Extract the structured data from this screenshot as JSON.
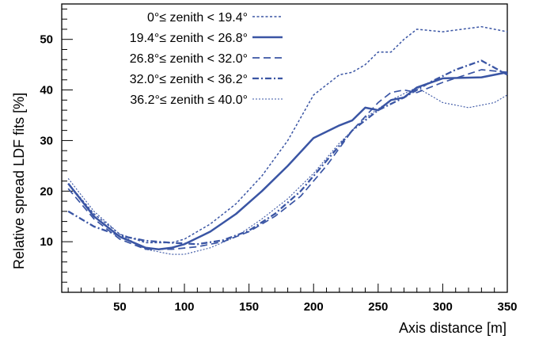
{
  "chart_data": {
    "type": "line",
    "title": "",
    "xlabel": "Axis distance [m]",
    "ylabel": "Relative spread LDF fits [%]",
    "xlim": [
      5,
      350
    ],
    "ylim": [
      0,
      57
    ],
    "x_ticks": [
      50,
      100,
      150,
      200,
      250,
      300,
      350
    ],
    "y_ticks": [
      10,
      20,
      30,
      40,
      50
    ],
    "grid": false,
    "legend_position": "top-left",
    "color": "#3a55a4",
    "series": [
      {
        "name": "0°≤ zenith < 19.4°",
        "style": "dotted",
        "x": [
          10,
          30,
          50,
          70,
          90,
          100,
          120,
          140,
          160,
          180,
          200,
          220,
          230,
          240,
          250,
          260,
          270,
          280,
          300,
          330,
          350
        ],
        "y": [
          21.5,
          15.5,
          11.5,
          9.8,
          9.8,
          10.5,
          13.5,
          17.5,
          23,
          30,
          39,
          43,
          43.5,
          45,
          47.5,
          47.5,
          50,
          52,
          51.5,
          52.5,
          51.5
        ]
      },
      {
        "name": "19.4°≤ zenith < 26.8°",
        "style": "solid",
        "x": [
          10,
          30,
          50,
          70,
          80,
          90,
          100,
          120,
          140,
          160,
          180,
          200,
          220,
          230,
          240,
          250,
          260,
          270,
          280,
          300,
          330,
          350
        ],
        "y": [
          21.5,
          15,
          11,
          8.8,
          8.5,
          8.8,
          9.5,
          12,
          15.5,
          20,
          25,
          30.5,
          33,
          34,
          36.5,
          36,
          38,
          38.5,
          40.5,
          42.3,
          42.5,
          43.5
        ]
      },
      {
        "name": "26.8°≤ zenith < 32.0°",
        "style": "dashed",
        "x": [
          10,
          30,
          50,
          70,
          90,
          110,
          130,
          150,
          170,
          190,
          210,
          230,
          250,
          260,
          270,
          280,
          300,
          330,
          350
        ],
        "y": [
          20.5,
          14.5,
          10.5,
          8.5,
          8.5,
          9,
          10,
          12,
          15,
          19,
          25,
          32,
          37.5,
          39.5,
          40,
          39.5,
          41.5,
          44,
          43.5
        ]
      },
      {
        "name": "32.0°≤ zenith < 36.2°",
        "style": "dash-dot",
        "x": [
          10,
          30,
          50,
          70,
          90,
          110,
          130,
          150,
          170,
          190,
          210,
          230,
          250,
          270,
          290,
          310,
          330,
          350
        ],
        "y": [
          16,
          13,
          11.2,
          10.2,
          9.8,
          9.5,
          10.3,
          12.2,
          15.5,
          20,
          26,
          32,
          36,
          38.5,
          41.5,
          44,
          45.8,
          43
        ]
      },
      {
        "name": "36.2°≤ zenith ≤ 40.0°",
        "style": "fine-dotted",
        "x": [
          10,
          30,
          50,
          70,
          90,
          100,
          120,
          140,
          160,
          180,
          200,
          220,
          240,
          260,
          280,
          300,
          320,
          340,
          350
        ],
        "y": [
          22.5,
          16,
          11.5,
          8.5,
          7.5,
          7.5,
          8.8,
          11,
          14.5,
          18.5,
          23.5,
          29.5,
          34.5,
          38,
          40.5,
          37.5,
          36.5,
          37.5,
          39
        ]
      }
    ]
  }
}
